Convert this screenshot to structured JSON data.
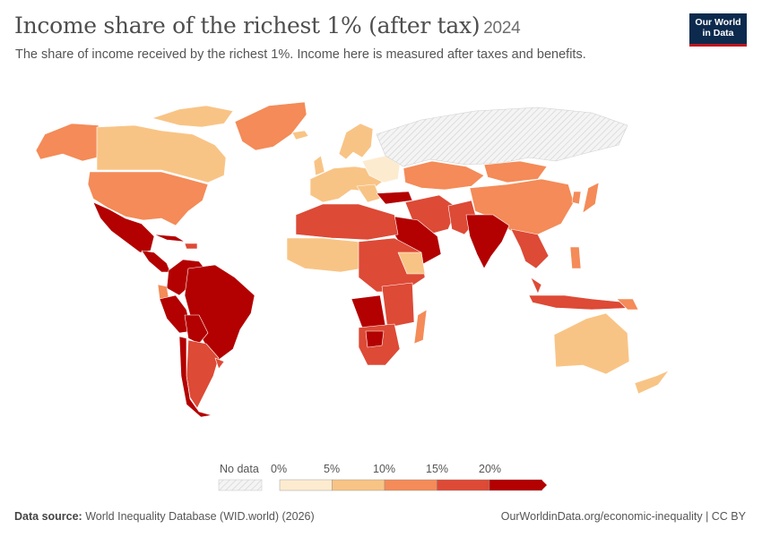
{
  "header": {
    "title": "Income share of the richest 1% (after tax)",
    "year": "2024",
    "subtitle": "The share of income received by the richest 1%. Income here is measured after taxes and benefits."
  },
  "logo": {
    "line1": "Our World",
    "line2": "in Data"
  },
  "legend": {
    "no_data_label": "No data",
    "ticks": [
      "0%",
      "5%",
      "10%",
      "15%",
      "20%"
    ],
    "colors": [
      "#fdebd0",
      "#f8c485",
      "#f48b58",
      "#dd4a36",
      "#b30000"
    ],
    "no_data_color": "#e8e8e8"
  },
  "footer": {
    "source_label": "Data source:",
    "source_text": " World Inequality Database (WID.world) (2026)",
    "link": "OurWorldinData.org/economic-inequality | CC BY"
  },
  "colors": {
    "ocean": "#ffffff",
    "border": "#ffffff"
  }
}
